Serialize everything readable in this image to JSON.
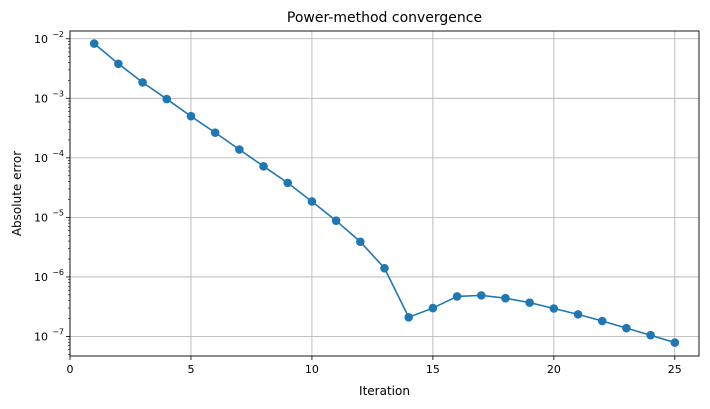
{
  "chart_data": {
    "type": "line",
    "title": "Power-method convergence",
    "xlabel": "Iteration",
    "ylabel": "Absolute error",
    "x_scale": "linear",
    "y_scale": "log",
    "xlim": [
      0,
      26
    ],
    "ylim": [
      4.7e-08,
      0.0135
    ],
    "grid": true,
    "marker": "circle",
    "color": "#1f77b4",
    "x_ticks": [
      {
        "value": 0,
        "label": "0"
      },
      {
        "value": 5,
        "label": "5"
      },
      {
        "value": 10,
        "label": "10"
      },
      {
        "value": 15,
        "label": "15"
      },
      {
        "value": 20,
        "label": "20"
      },
      {
        "value": 25,
        "label": "25"
      }
    ],
    "y_ticks": [
      {
        "value": 1e-07,
        "base": "10",
        "exp": "−7"
      },
      {
        "value": 1e-06,
        "base": "10",
        "exp": "−6"
      },
      {
        "value": 1e-05,
        "base": "10",
        "exp": "−5"
      },
      {
        "value": 0.0001,
        "base": "10",
        "exp": "−4"
      },
      {
        "value": 0.001,
        "base": "10",
        "exp": "−3"
      },
      {
        "value": 0.01,
        "base": "10",
        "exp": "−2"
      }
    ],
    "x": [
      1,
      2,
      3,
      4,
      5,
      6,
      7,
      8,
      9,
      10,
      11,
      12,
      13,
      14,
      15,
      16,
      17,
      18,
      19,
      20,
      21,
      22,
      23,
      24,
      25
    ],
    "y": [
      0.0083,
      0.0038,
      0.00185,
      0.00097,
      0.0005,
      0.000265,
      0.000138,
      7.2e-05,
      3.8e-05,
      1.85e-05,
      8.8e-06,
      3.9e-06,
      1.4e-06,
      2.1e-07,
      3e-07,
      4.7e-07,
      4.9e-07,
      4.4e-07,
      3.7e-07,
      2.95e-07,
      2.35e-07,
      1.82e-07,
      1.38e-07,
      1.05e-07,
      7.9e-08
    ]
  }
}
